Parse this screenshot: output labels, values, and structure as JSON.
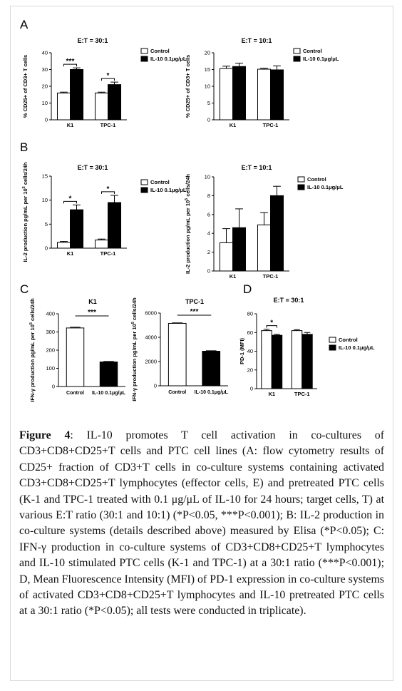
{
  "panel_letters": [
    "A",
    "B",
    "C",
    "D"
  ],
  "caption": {
    "label": "Figure 4",
    "text": ": IL-10 promotes T cell activation in co-cultures of CD3+CD8+CD25+T cells and PTC cell lines (A: flow cytometry results of CD25+ fraction of CD3+T cells in co-culture systems containing activated CD3+CD8+CD25+T lymphocytes (effector cells, E) and pretreated PTC cells (K-1 and TPC-1 treated with 0.1 μg/μL of IL-10 for 24 hours; target cells, T) at various E:T ratio (30:1 and 10:1) (*P<0.05, ***P<0.001); B: IL-2 production in co-culture systems (details described above) measured by Elisa (*P<0.05); C: IFN-γ production in co-culture systems of CD3+CD8+CD25+T lymphocytes and IL-10 stimulated PTC cells (K-1 and TPC-1) at a 30:1 ratio (***P<0.001); D, Mean Fluorescence Intensity (MFI) of PD-1 expression in co-culture systems of activated CD3+CD8+CD25+T lymphocytes and IL-10 pretreated PTC cells at a 30:1 ratio (*P<0.05); all tests were conducted in triplicate)."
  },
  "chart_data": [
    {
      "type": "bar",
      "panel": "A",
      "title": "E:T = 30:1",
      "ylabel": "% CD25+ of CD3+ T cells",
      "categories": [
        "K1",
        "TPC-1"
      ],
      "ylim": [
        0,
        40
      ],
      "yticks": [
        0,
        10,
        20,
        30,
        40
      ],
      "series": [
        {
          "name": "Control",
          "values": [
            16,
            16
          ],
          "errors": [
            0.5,
            0.5
          ]
        },
        {
          "name": "IL-10 0.1μg/μL",
          "values": [
            30,
            21
          ],
          "errors": [
            1,
            1.5
          ]
        }
      ],
      "significance": [
        "***",
        "*"
      ],
      "legend": "top-right"
    },
    {
      "type": "bar",
      "panel": "A",
      "title": "E:T = 10:1",
      "ylabel": "% CD25+ of CD3+ T cells",
      "categories": [
        "K1",
        "TPC-1"
      ],
      "ylim": [
        0,
        20
      ],
      "yticks": [
        0,
        5,
        10,
        15,
        20
      ],
      "series": [
        {
          "name": "Control",
          "values": [
            15.3,
            15.1
          ],
          "errors": [
            0.7,
            0.3
          ]
        },
        {
          "name": "IL-10 0.1μg/μL",
          "values": [
            15.9,
            14.9
          ],
          "errors": [
            1.0,
            1.2
          ]
        }
      ],
      "significance": [
        "",
        ""
      ],
      "legend": "top-right"
    },
    {
      "type": "bar",
      "panel": "B",
      "title": "E:T = 30:1",
      "ylabel": "IL-2 production pg/mL per 105 cells/24h",
      "categories": [
        "K1",
        "TPC-1"
      ],
      "ylim": [
        0,
        15
      ],
      "yticks": [
        0,
        5,
        10,
        15
      ],
      "series": [
        {
          "name": "Control",
          "values": [
            1.2,
            1.7
          ],
          "errors": [
            0.2,
            0.2
          ]
        },
        {
          "name": "IL-10 0.1μg/μL",
          "values": [
            8,
            9.5
          ],
          "errors": [
            1,
            1.5
          ]
        }
      ],
      "significance": [
        "*",
        "*"
      ],
      "legend": "top-right"
    },
    {
      "type": "bar",
      "panel": "B",
      "title": "E:T = 10:1",
      "ylabel": "IL-2 production pg/mL per 105 cells/24h",
      "categories": [
        "K1",
        "TPC-1"
      ],
      "ylim": [
        0,
        10
      ],
      "yticks": [
        0,
        2,
        4,
        6,
        8,
        10
      ],
      "series": [
        {
          "name": "Control",
          "values": [
            3,
            4.9
          ],
          "errors": [
            1.5,
            1.3
          ]
        },
        {
          "name": "IL-10 0.1μg/μL",
          "values": [
            4.6,
            8
          ],
          "errors": [
            2,
            1
          ]
        }
      ],
      "significance": [
        "",
        ""
      ],
      "legend": "top-right"
    },
    {
      "type": "bar",
      "panel": "C",
      "title": "K1",
      "ylabel": "IFN-γ production pg/mL per 105 cells/24h",
      "categories": [
        "Control",
        "IL-10 0.1μg/μL"
      ],
      "ylim": [
        0,
        400
      ],
      "yticks": [
        0,
        100,
        200,
        300,
        400
      ],
      "values": [
        322,
        135
      ],
      "errors": [
        4,
        3
      ],
      "fills": [
        "#ffffff",
        "#000000"
      ],
      "significance": "***"
    },
    {
      "type": "bar",
      "panel": "C",
      "title": "TPC-1",
      "ylabel": "IFN-γ production pg/mL per 105 cells/24h",
      "categories": [
        "Control",
        "IL-10 0.1μg/μL"
      ],
      "ylim": [
        0,
        6000
      ],
      "yticks": [
        0,
        2000,
        4000,
        6000
      ],
      "values": [
        5150,
        2850
      ],
      "errors": [
        40,
        40
      ],
      "fills": [
        "#ffffff",
        "#000000"
      ],
      "significance": "***"
    },
    {
      "type": "bar",
      "panel": "D",
      "title": "E:T = 30:1",
      "ylabel": "PD-1 (MFI)",
      "categories": [
        "K1",
        "TPC-1"
      ],
      "ylim": [
        0,
        80
      ],
      "yticks": [
        0,
        20,
        40,
        60,
        80
      ],
      "series": [
        {
          "name": "Control",
          "values": [
            62,
            62
          ],
          "errors": [
            1.5,
            1
          ]
        },
        {
          "name": "IL-10 0.1μg/μL",
          "values": [
            57,
            58
          ],
          "errors": [
            1,
            2
          ]
        }
      ],
      "significance": [
        "*",
        ""
      ],
      "legend": "right"
    }
  ]
}
